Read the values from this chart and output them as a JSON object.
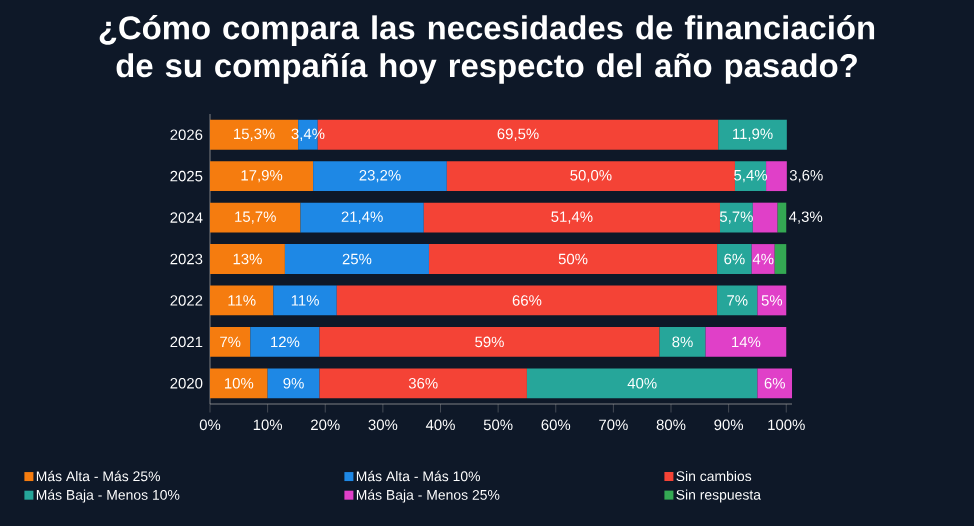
{
  "chart_data": {
    "type": "bar",
    "orientation": "horizontal",
    "stacked": true,
    "title": "¿Cómo compara las necesidades de financiación de su compañía hoy respecto del año pasado?",
    "categories": [
      "2026",
      "2025",
      "2024",
      "2023",
      "2022",
      "2021",
      "2020"
    ],
    "series": [
      {
        "name": "Más Alta - Más 25%",
        "color": "#f57c0f",
        "values": [
          15.3,
          17.9,
          15.7,
          13,
          11,
          7,
          10
        ],
        "value_labels": [
          "15,3%",
          "17,9%",
          "15,7%",
          "13%",
          "11%",
          "7%",
          "10%"
        ]
      },
      {
        "name": "Más Alta - Más 10%",
        "color": "#1e88e5",
        "values": [
          3.4,
          23.2,
          21.4,
          25,
          11,
          12,
          9
        ],
        "value_labels": [
          "3,4%",
          "23,2%",
          "21,4%",
          "25%",
          "11%",
          "12%",
          "9%"
        ]
      },
      {
        "name": "Sin cambios",
        "color": "#f44336",
        "values": [
          69.5,
          50.0,
          51.4,
          50,
          66,
          59,
          36
        ],
        "value_labels": [
          "69,5%",
          "50,0%",
          "51,4%",
          "50%",
          "66%",
          "59%",
          "36%"
        ]
      },
      {
        "name": "Más Baja - Menos 10%",
        "color": "#26a69a",
        "values": [
          11.9,
          5.4,
          5.7,
          6,
          7,
          8,
          40
        ],
        "value_labels": [
          "11,9%",
          "5,4%",
          "5,7%",
          "6%",
          "7%",
          "8%",
          "40%"
        ]
      },
      {
        "name": "Más Baja - Menos 25%",
        "color": "#e040c8",
        "values": [
          null,
          3.6,
          4.3,
          4,
          5,
          14,
          6
        ],
        "value_labels": [
          null,
          "3,6%",
          "4,3%",
          "4%",
          "5%",
          "14%",
          "6%"
        ]
      },
      {
        "name": "Sin respuesta",
        "color": "#34a853",
        "values": [
          null,
          null,
          1.5,
          2,
          null,
          null,
          null
        ],
        "value_labels": [
          null,
          null,
          null,
          null,
          null,
          null,
          null
        ]
      }
    ],
    "xlim": [
      0,
      101
    ],
    "xticks": [
      {
        "value": 0,
        "label": "0%"
      },
      {
        "value": 10,
        "label": "10%"
      },
      {
        "value": 20,
        "label": "20%"
      },
      {
        "value": 30,
        "label": "30%"
      },
      {
        "value": 40,
        "label": "40%"
      },
      {
        "value": 50,
        "label": "50%"
      },
      {
        "value": 60,
        "label": "60%"
      },
      {
        "value": 70,
        "label": "70%"
      },
      {
        "value": 80,
        "label": "80%"
      },
      {
        "value": 90,
        "label": "90%"
      },
      {
        "value": 100,
        "label": "100%"
      }
    ],
    "legend": "bottom",
    "grid": false
  }
}
